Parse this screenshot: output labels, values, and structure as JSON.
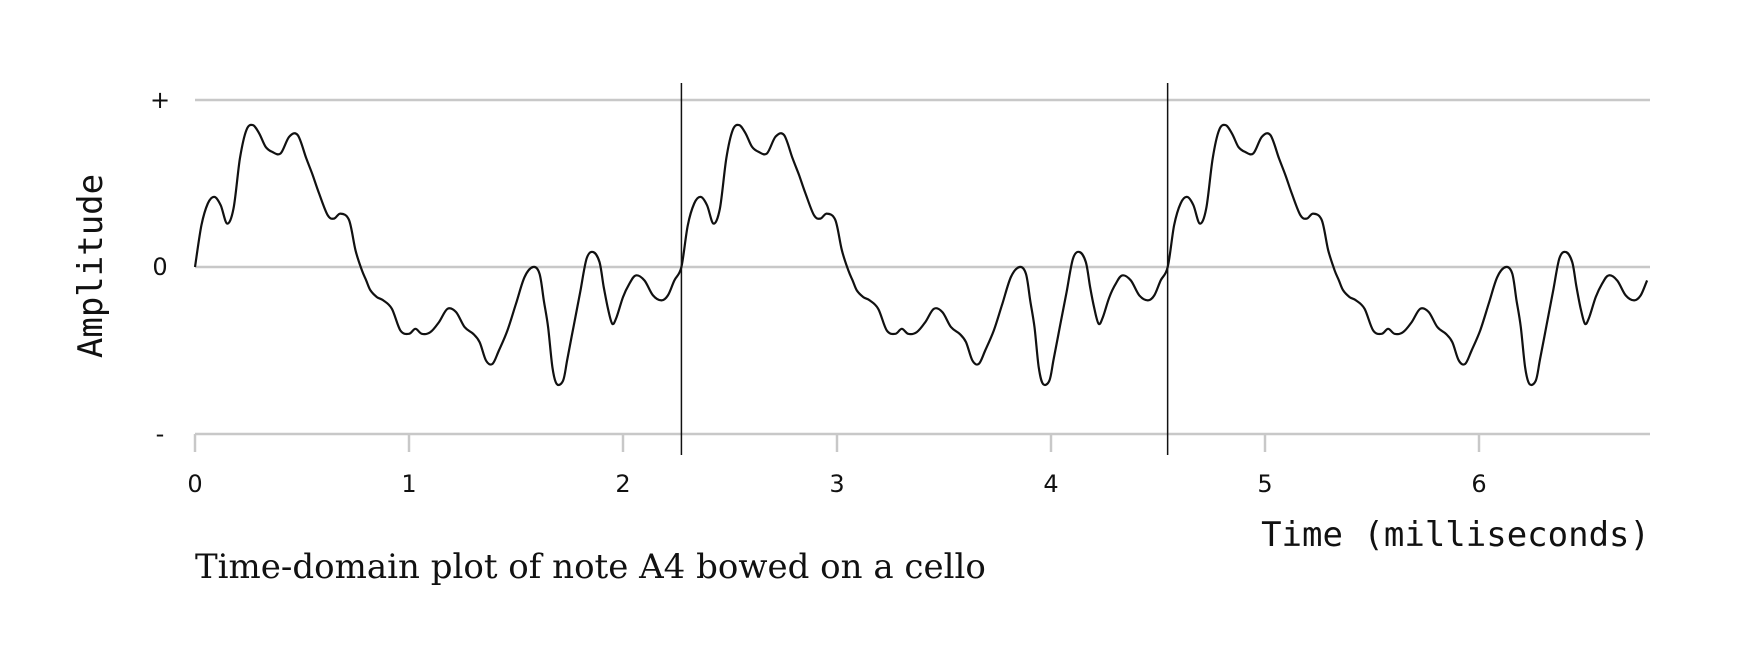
{
  "chart_data": {
    "type": "line",
    "title": "",
    "caption": "Time-domain plot of note A4 bowed on a cello",
    "xlabel": "Time (milliseconds)",
    "ylabel": "Amplitude",
    "xlim": [
      0,
      6.8
    ],
    "ylim": [
      -1,
      1
    ],
    "x_ticks": [
      0,
      1,
      2,
      3,
      4,
      5,
      6
    ],
    "x_tick_labels": [
      "0",
      "1",
      "2",
      "3",
      "4",
      "5",
      "6"
    ],
    "y_ticks": [
      1,
      0,
      -1
    ],
    "y_tick_labels": [
      "+",
      "0",
      "-"
    ],
    "grid": "horizontal",
    "period_markers": [
      2.273,
      4.545
    ],
    "period_ms": 2.2727,
    "series": [
      {
        "waveform_one_period": {
          "x": [
            0,
            0.03,
            0.06,
            0.09,
            0.12,
            0.15,
            0.18,
            0.21,
            0.24,
            0.27,
            0.3,
            0.33,
            0.36,
            0.4,
            0.44,
            0.48,
            0.52,
            0.55,
            0.58,
            0.62,
            0.65,
            0.68,
            0.72,
            0.75,
            0.78,
            0.8,
            0.82,
            0.85,
            0.88,
            0.92,
            0.96,
            1.0,
            1.03,
            1.06,
            1.1,
            1.14,
            1.18,
            1.22,
            1.26,
            1.3,
            1.33,
            1.36,
            1.39,
            1.42,
            1.46,
            1.5,
            1.54,
            1.58,
            1.61,
            1.63,
            1.65,
            1.67,
            1.69,
            1.72,
            1.74,
            1.77,
            1.8,
            1.83,
            1.86,
            1.89,
            1.91,
            1.93,
            1.95,
            1.97,
            2.0,
            2.03,
            2.06,
            2.1,
            2.14,
            2.18,
            2.21,
            2.24,
            2.2727
          ],
          "y": [
            0,
            0.25,
            0.38,
            0.42,
            0.37,
            0.26,
            0.35,
            0.65,
            0.82,
            0.85,
            0.8,
            0.72,
            0.69,
            0.68,
            0.78,
            0.79,
            0.65,
            0.55,
            0.44,
            0.31,
            0.29,
            0.32,
            0.28,
            0.1,
            -0.02,
            -0.08,
            -0.14,
            -0.18,
            -0.2,
            -0.25,
            -0.38,
            -0.4,
            -0.37,
            -0.4,
            -0.39,
            -0.33,
            -0.25,
            -0.27,
            -0.36,
            -0.4,
            -0.45,
            -0.56,
            -0.58,
            -0.5,
            -0.38,
            -0.22,
            -0.06,
            0,
            -0.04,
            -0.2,
            -0.36,
            -0.6,
            -0.7,
            -0.68,
            -0.55,
            -0.35,
            -0.15,
            0.05,
            0.09,
            0.03,
            -0.12,
            -0.25,
            -0.34,
            -0.3,
            -0.18,
            -0.1,
            -0.05,
            -0.08,
            -0.17,
            -0.2,
            -0.17,
            -0.08,
            0
          ]
        }
      }
    ]
  }
}
